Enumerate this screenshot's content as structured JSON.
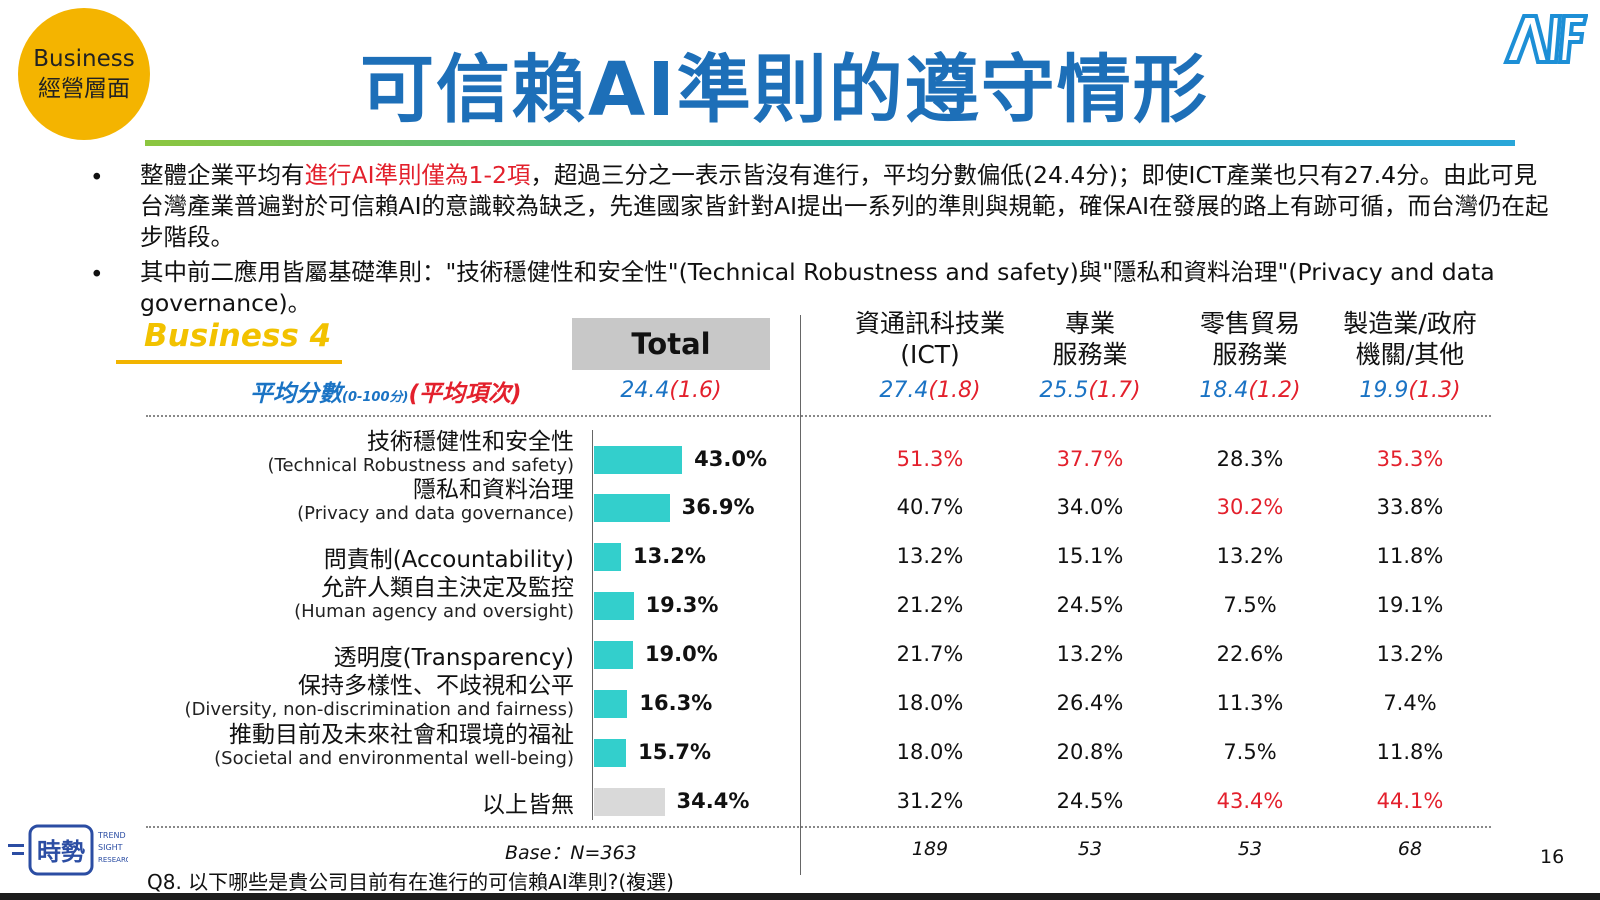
{
  "badge": {
    "line1": "Business",
    "line2": "經營層面"
  },
  "title": "可信賴AI準則的遵守情形",
  "logo_text": "AIIF",
  "bullet1": {
    "pre": "整體企業平均有",
    "highlight": "進行AI準則僅為1-2項",
    "post": "，超過三分之一表示皆沒有進行，平均分數偏低(24.4分)；即使ICT產業也只有27.4分。由此可見台灣產業普遍對於可信賴AI的意識較為缺乏，先進國家皆針對AI提出一系列的準則與規範，確保AI在發展的路上有跡可循，而台灣仍在起步階段。"
  },
  "bullet2": "其中前二應用皆屬基礎準則：\"技術穩健性和安全性\"(Technical Robustness and safety)與\"隱私和資料治理\"(Privacy and data governance)。",
  "section_label": "Business 4",
  "avg_label": {
    "main": "平均分數",
    "range": "(0-100分)",
    "items": "(平均項次)"
  },
  "total_header": "Total",
  "columns": [
    {
      "line1": "資通訊科技業",
      "line2": "(ICT)",
      "avg": "27.4",
      "items": "(1.8)",
      "base": "189"
    },
    {
      "line1": "專業",
      "line2": "服務業",
      "avg": "25.5",
      "items": "(1.7)",
      "base": "53"
    },
    {
      "line1": "零售貿易",
      "line2": "服務業",
      "avg": "18.4",
      "items": "(1.2)",
      "base": "53"
    },
    {
      "line1": "製造業/政府",
      "line2": "機關/其他",
      "avg": "19.9",
      "items": "(1.3)",
      "base": "68"
    }
  ],
  "total_avg": {
    "avg": "24.4",
    "items": "(1.6)"
  },
  "colors": {
    "bar": "#33cfcc",
    "none_bar": "#d9d9d9",
    "highlight": "#e3202c",
    "title": "#1d6fb8"
  },
  "chart_data": {
    "type": "bar",
    "orientation": "horizontal",
    "categories": [
      "技術穩健性和安全性",
      "隱私和資料治理",
      "問責制(Accountability)",
      "允許人類自主決定及監控",
      "透明度(Transparency)",
      "保持多樣性、不歧視和公平",
      "推動目前及未來社會和環境的福祉",
      "以上皆無"
    ],
    "categories_en": [
      "(Technical Robustness and safety)",
      "(Privacy and data governance)",
      "",
      "(Human agency and oversight)",
      "",
      "(Diversity, non-discrimination and fairness)",
      "(Societal and environmental well-being)",
      ""
    ],
    "values": [
      43.0,
      36.9,
      13.2,
      19.3,
      19.0,
      16.3,
      15.7,
      34.4
    ],
    "value_labels": [
      "43.0%",
      "36.9%",
      "13.2%",
      "19.3%",
      "19.0%",
      "16.3%",
      "15.7%",
      "34.4%"
    ],
    "xlim": [
      0,
      100
    ],
    "table": {
      "headers": [
        "資通訊科技業(ICT)",
        "專業服務業",
        "零售貿易服務業",
        "製造業/政府機關/其他"
      ],
      "rows": [
        [
          "51.3%",
          "37.7%",
          "28.3%",
          "35.3%"
        ],
        [
          "40.7%",
          "34.0%",
          "30.2%",
          "33.8%"
        ],
        [
          "13.2%",
          "15.1%",
          "13.2%",
          "11.8%"
        ],
        [
          "21.2%",
          "24.5%",
          "7.5%",
          "19.1%"
        ],
        [
          "21.7%",
          "13.2%",
          "22.6%",
          "13.2%"
        ],
        [
          "18.0%",
          "26.4%",
          "11.3%",
          "7.4%"
        ],
        [
          "18.0%",
          "20.8%",
          "7.5%",
          "11.8%"
        ],
        [
          "31.2%",
          "24.5%",
          "43.4%",
          "44.1%"
        ]
      ],
      "highlighted": [
        [
          true,
          true,
          false,
          true
        ],
        [
          false,
          false,
          true,
          false
        ],
        [
          false,
          false,
          false,
          false
        ],
        [
          false,
          false,
          false,
          false
        ],
        [
          false,
          false,
          false,
          false
        ],
        [
          false,
          false,
          false,
          false
        ],
        [
          false,
          false,
          false,
          false
        ],
        [
          false,
          false,
          true,
          true
        ]
      ]
    }
  },
  "base_label": "Base：N=363",
  "question": "Q8. 以下哪些是貴公司目前有在進行的可信賴AI準則?(複選)",
  "page_number": "16",
  "brand_logo": {
    "main": "時勢",
    "sub1": "TREND",
    "sub2": "SIGHT",
    "sub3": "RESEARCH"
  }
}
